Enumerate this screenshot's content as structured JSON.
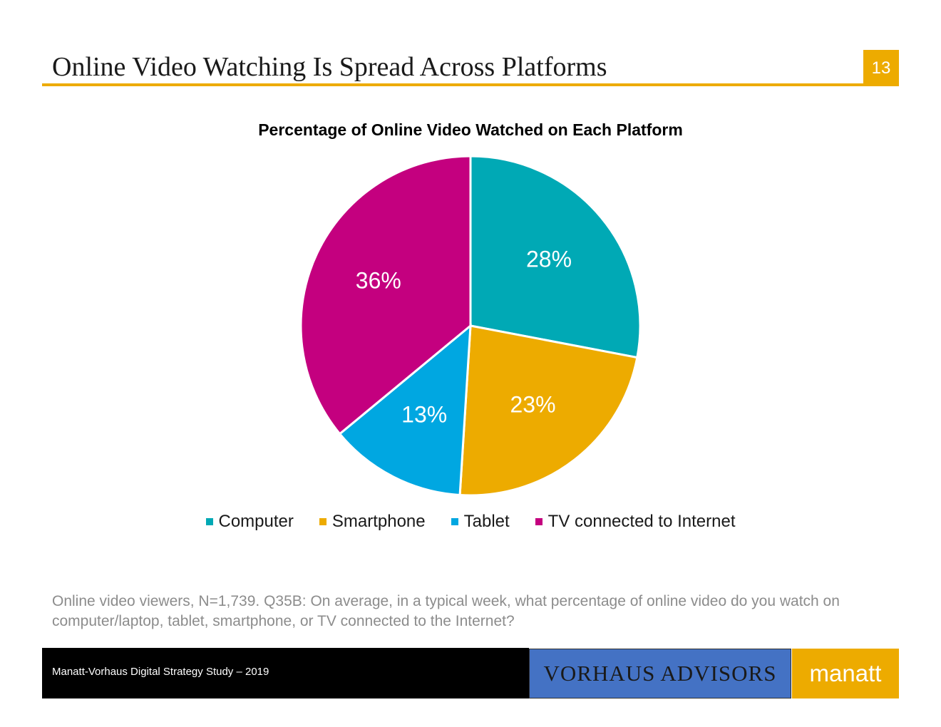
{
  "slide": {
    "title": "Online Video Watching Is Spread Across Platforms",
    "page_number": "13",
    "accent_color": "#edab00"
  },
  "chart_data": {
    "type": "pie",
    "title": "Percentage of Online Video Watched on Each Platform",
    "categories": [
      "Computer",
      "Smartphone",
      "Tablet",
      "TV connected to Internet"
    ],
    "values": [
      28,
      23,
      13,
      36
    ],
    "labels": [
      "28%",
      "23%",
      "13%",
      "36%"
    ],
    "colors": [
      "#00a9b5",
      "#edab00",
      "#00a7e1",
      "#c4007f"
    ],
    "legend_position": "bottom"
  },
  "footnote": "Online video viewers, N=1,739. Q35B: On average, in a typical week, what percentage of online video do you watch on computer/laptop, tablet, smartphone, or TV connected to the Internet?",
  "footer": {
    "text": "Manatt-Vorhaus Digital Strategy Study – 2019",
    "logo_vorhaus": "VORHAUS ADVISORS",
    "logo_manatt": "manatt"
  }
}
